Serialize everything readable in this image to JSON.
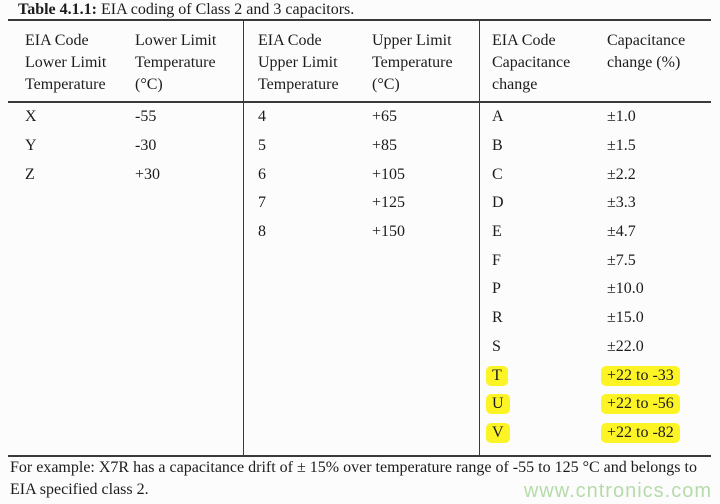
{
  "title": {
    "label": "Table 4.1.1:",
    "text": " EIA coding of Class 2 and 3 capacitors."
  },
  "table": {
    "groups": [
      {
        "headers": [
          [
            "EIA Code",
            "Lower Limit",
            "Temperature"
          ],
          [
            "Lower Limit",
            "Temperature",
            "(°C)"
          ]
        ],
        "rows": [
          [
            "X",
            "-55"
          ],
          [
            "Y",
            "-30"
          ],
          [
            "Z",
            "+30"
          ]
        ],
        "highlighted_rows": []
      },
      {
        "headers": [
          [
            "EIA Code",
            "Upper Limit",
            "Temperature"
          ],
          [
            "Upper Limit",
            "Temperature",
            "(°C)"
          ]
        ],
        "rows": [
          [
            "4",
            "+65"
          ],
          [
            "5",
            "+85"
          ],
          [
            "6",
            "+105"
          ],
          [
            "7",
            "+125"
          ],
          [
            "8",
            "+150"
          ]
        ],
        "highlighted_rows": []
      },
      {
        "headers": [
          [
            "EIA Code",
            "Capacitance",
            "change"
          ],
          [
            "Capacitance",
            "change (%)"
          ]
        ],
        "rows": [
          [
            "A",
            "±1.0"
          ],
          [
            "B",
            "±1.5"
          ],
          [
            "C",
            "±2.2"
          ],
          [
            "D",
            "±3.3"
          ],
          [
            "E",
            "±4.7"
          ],
          [
            "F",
            "±7.5"
          ],
          [
            "P",
            "±10.0"
          ],
          [
            "R",
            "±15.0"
          ],
          [
            "S",
            "±22.0"
          ],
          [
            "T",
            "+22 to -33"
          ],
          [
            "U",
            "+22 to -56"
          ],
          [
            "V",
            "+22 to -82"
          ]
        ],
        "highlighted_rows": [
          9,
          10,
          11
        ]
      }
    ]
  },
  "footer": {
    "text": "For example: X7R has a capacitance drift of ± 15% over temperature range of -55 to 125 °C and belongs to EIA specified class 2."
  },
  "watermark": {
    "text": "www.cntronics.com"
  },
  "colors": {
    "highlight": "#fdf425",
    "border": "#3a3a3a",
    "text": "#1c1c1c",
    "background": "#fcfcfc",
    "watermark": "#b6dbaa"
  }
}
